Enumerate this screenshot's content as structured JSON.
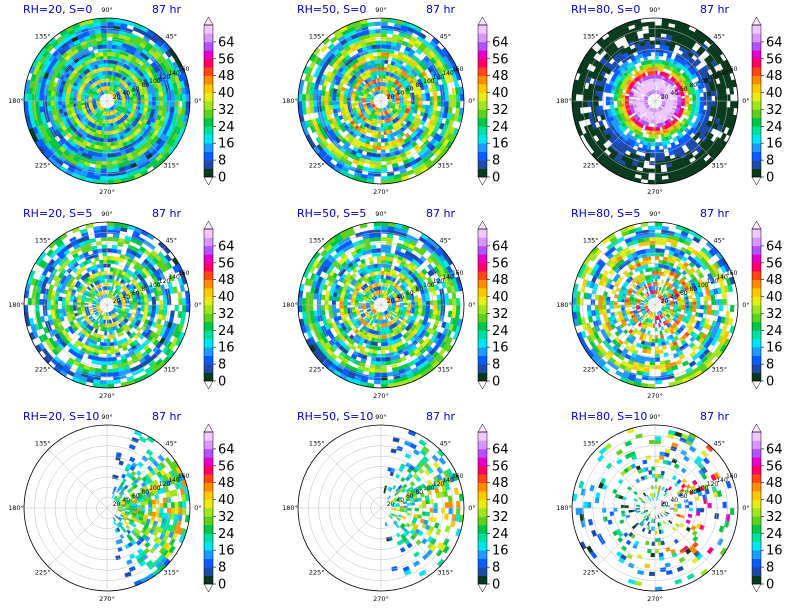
{
  "figure": {
    "time_label": "87 hr"
  },
  "colorbar": {
    "ticks": [
      "0",
      "8",
      "16",
      "24",
      "32",
      "40",
      "48",
      "56",
      "64"
    ],
    "levels": [
      0,
      4,
      8,
      12,
      16,
      20,
      24,
      28,
      32,
      36,
      40,
      44,
      48,
      52,
      56,
      60,
      64,
      68
    ],
    "colors": [
      "#0a3a1e",
      "#1c4aa8",
      "#0a5cff",
      "#1e9bff",
      "#00e6f0",
      "#00e0a0",
      "#00c846",
      "#5ad21e",
      "#a0e61e",
      "#e6ec14",
      "#ffc800",
      "#ff8c00",
      "#ff4614",
      "#ff0064",
      "#e600c8",
      "#b450ff",
      "#d796ff",
      "#f0c8ff"
    ]
  },
  "polar_axes": {
    "angle_labels": [
      "90°",
      "45°",
      "0°",
      "315°",
      "270°",
      "225°",
      "180°",
      "135°"
    ],
    "radial_labels": [
      "20",
      "40",
      "60",
      "80",
      "100",
      "120",
      "140",
      "160"
    ]
  },
  "chart_data": [
    {
      "type": "heatmap",
      "title": "RH=20, S=0",
      "time": "87 hr",
      "coverage": 0.95,
      "banding": "spiral",
      "peak_level": 44
    },
    {
      "type": "heatmap",
      "title": "RH=50, S=0",
      "time": "87 hr",
      "coverage": 0.85,
      "banding": "spiral",
      "peak_level": 52
    },
    {
      "type": "heatmap",
      "title": "RH=80, S=0",
      "time": "87 hr",
      "coverage": 0.8,
      "banding": "rings",
      "peak_level": 64
    },
    {
      "type": "heatmap",
      "title": "RH=20, S=5",
      "time": "87 hr",
      "coverage": 0.7,
      "banding": "spiral",
      "peak_level": 44
    },
    {
      "type": "heatmap",
      "title": "RH=50, S=5",
      "time": "87 hr",
      "coverage": 0.75,
      "banding": "spiral",
      "peak_level": 48
    },
    {
      "type": "heatmap",
      "title": "RH=80, S=5",
      "time": "87 hr",
      "coverage": 0.65,
      "banding": "spiral",
      "peak_level": 56
    },
    {
      "type": "heatmap",
      "title": "RH=20, S=10",
      "time": "87 hr",
      "coverage": 0.25,
      "banding": "sector",
      "peak_level": 48
    },
    {
      "type": "heatmap",
      "title": "RH=50, S=10",
      "time": "87 hr",
      "coverage": 0.15,
      "banding": "sector",
      "peak_level": 48
    },
    {
      "type": "heatmap",
      "title": "RH=80, S=10",
      "time": "87 hr",
      "coverage": 0.2,
      "banding": "scatter",
      "peak_level": 56
    }
  ]
}
